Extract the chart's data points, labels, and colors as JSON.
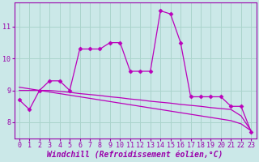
{
  "xlabel": "Windchill (Refroidissement éolien,°C)",
  "background_color": "#cbe8e8",
  "grid_color": "#aad4cc",
  "line_color": "#bb00bb",
  "xlim": [
    -0.5,
    23.5
  ],
  "ylim": [
    7.5,
    11.75
  ],
  "x": [
    0,
    1,
    2,
    3,
    4,
    5,
    6,
    7,
    8,
    9,
    10,
    11,
    12,
    13,
    14,
    15,
    16,
    17,
    18,
    19,
    20,
    21,
    22,
    23
  ],
  "series_main": [
    8.7,
    8.4,
    9.0,
    9.3,
    9.3,
    9.0,
    10.3,
    10.3,
    10.3,
    10.5,
    10.5,
    9.6,
    9.6,
    9.6,
    11.5,
    11.4,
    10.5,
    8.8,
    8.8,
    8.8,
    8.8,
    8.5,
    8.5,
    7.7
  ],
  "series_line1": [
    9.0,
    9.0,
    9.0,
    9.0,
    8.97,
    8.94,
    8.9,
    8.87,
    8.84,
    8.8,
    8.77,
    8.73,
    8.7,
    8.66,
    8.63,
    8.6,
    8.56,
    8.53,
    8.5,
    8.46,
    8.43,
    8.4,
    8.2,
    7.73
  ],
  "series_line2": [
    9.1,
    9.05,
    9.0,
    8.95,
    8.9,
    8.85,
    8.8,
    8.75,
    8.7,
    8.65,
    8.6,
    8.55,
    8.5,
    8.45,
    8.4,
    8.35,
    8.3,
    8.25,
    8.2,
    8.15,
    8.1,
    8.05,
    7.95,
    7.73
  ],
  "xticks": [
    0,
    1,
    2,
    3,
    4,
    5,
    6,
    7,
    8,
    9,
    10,
    11,
    12,
    13,
    14,
    15,
    16,
    17,
    18,
    19,
    20,
    21,
    22,
    23
  ],
  "yticks": [
    8,
    9,
    10,
    11
  ],
  "tick_fontsize": 6,
  "xlabel_fontsize": 7,
  "marker": "D",
  "marker_size": 2.5,
  "linewidth": 0.9,
  "axes_color": "#9900aa",
  "tick_color": "#9900aa",
  "xlabel_color": "#9900aa"
}
